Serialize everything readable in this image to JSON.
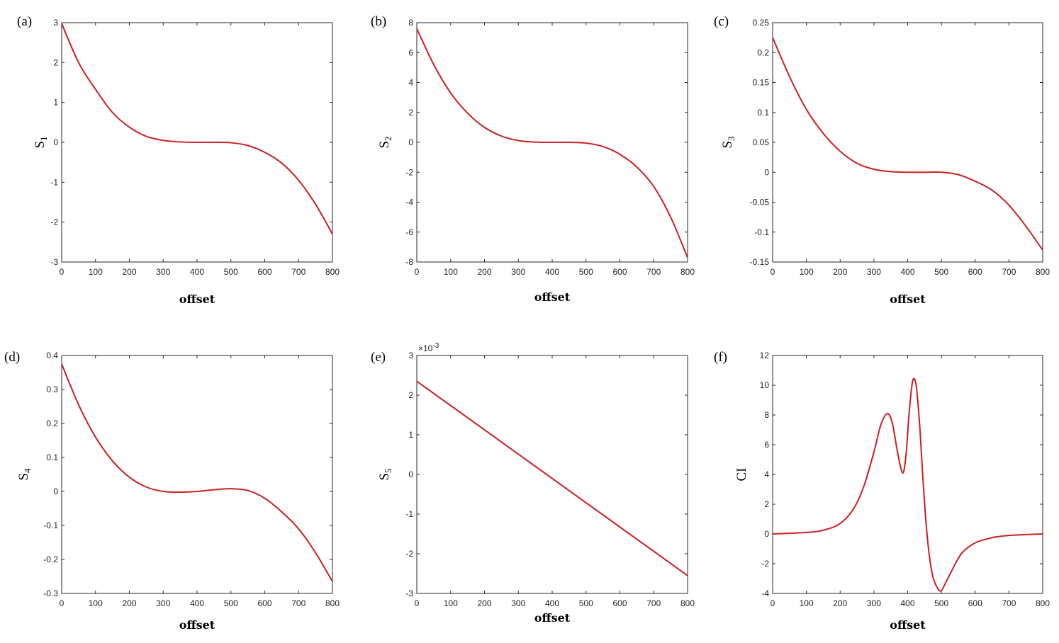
{
  "figure": {
    "line_color": "#cc1f1f",
    "axis_color": "#262626"
  },
  "chart_data": [
    {
      "panel": "(a)",
      "type": "line",
      "xlabel": "offset",
      "ylabel": "S",
      "ylabel_sub": "1",
      "xlim": [
        0,
        800
      ],
      "ylim": [
        -3,
        3
      ],
      "xticks": [
        0,
        100,
        200,
        300,
        400,
        500,
        600,
        700,
        800
      ],
      "yticks": [
        -3,
        -2,
        -1,
        0,
        1,
        2,
        3
      ],
      "ytick_labels": [
        "-3",
        "-2",
        "-1",
        "0",
        "1",
        "2",
        "3"
      ],
      "x": [
        0,
        50,
        100,
        150,
        200,
        250,
        300,
        350,
        400,
        450,
        500,
        550,
        600,
        650,
        700,
        750,
        800
      ],
      "y": [
        2.98,
        2.0,
        1.33,
        0.75,
        0.38,
        0.15,
        0.05,
        0.01,
        0.0,
        0.0,
        -0.01,
        -0.08,
        -0.25,
        -0.52,
        -0.95,
        -1.55,
        -2.3
      ]
    },
    {
      "panel": "(b)",
      "type": "line",
      "xlabel": "offset",
      "ylabel": "S",
      "ylabel_sub": "2",
      "xlim": [
        0,
        800
      ],
      "ylim": [
        -8,
        8
      ],
      "xticks": [
        0,
        100,
        200,
        300,
        400,
        500,
        600,
        700,
        800
      ],
      "yticks": [
        -8,
        -6,
        -4,
        -2,
        0,
        2,
        4,
        6,
        8
      ],
      "ytick_labels": [
        "-8",
        "-6",
        "-4",
        "-2",
        "0",
        "2",
        "4",
        "6",
        "8"
      ],
      "x": [
        0,
        50,
        100,
        150,
        200,
        250,
        300,
        350,
        400,
        450,
        500,
        550,
        600,
        650,
        700,
        750,
        800
      ],
      "y": [
        7.6,
        5.2,
        3.3,
        1.95,
        1.0,
        0.42,
        0.12,
        0.02,
        0.0,
        0.0,
        -0.05,
        -0.28,
        -0.8,
        -1.65,
        -2.95,
        -5.0,
        -7.7
      ]
    },
    {
      "panel": "(c)",
      "type": "line",
      "xlabel": "offset",
      "ylabel": "S",
      "ylabel_sub": "3",
      "xlim": [
        0,
        800
      ],
      "ylim": [
        -0.15,
        0.25
      ],
      "xticks": [
        0,
        100,
        200,
        300,
        400,
        500,
        600,
        700,
        800
      ],
      "yticks": [
        -0.15,
        -0.1,
        -0.05,
        0,
        0.05,
        0.1,
        0.15,
        0.2,
        0.25
      ],
      "ytick_labels": [
        "-0.15",
        "-0.1",
        "-0.05",
        "0",
        "0.05",
        "0.1",
        "0.15",
        "0.2",
        "0.25"
      ],
      "x": [
        0,
        50,
        100,
        150,
        200,
        250,
        300,
        350,
        400,
        450,
        500,
        550,
        600,
        650,
        700,
        750,
        800
      ],
      "y": [
        0.225,
        0.16,
        0.105,
        0.065,
        0.035,
        0.015,
        0.005,
        0.001,
        0.0,
        0.0,
        0.0,
        -0.004,
        -0.015,
        -0.03,
        -0.055,
        -0.09,
        -0.13
      ]
    },
    {
      "panel": "(d)",
      "type": "line",
      "xlabel": "offset",
      "ylabel": "S",
      "ylabel_sub": "4",
      "xlim": [
        0,
        800
      ],
      "ylim": [
        -0.3,
        0.4
      ],
      "xticks": [
        0,
        100,
        200,
        300,
        400,
        500,
        600,
        700,
        800
      ],
      "yticks": [
        -0.3,
        -0.2,
        -0.1,
        0,
        0.1,
        0.2,
        0.3,
        0.4
      ],
      "ytick_labels": [
        "-0.3",
        "-0.2",
        "-0.1",
        "0",
        "0.1",
        "0.2",
        "0.3",
        "0.4"
      ],
      "x": [
        0,
        50,
        100,
        150,
        200,
        250,
        300,
        350,
        400,
        450,
        500,
        550,
        600,
        650,
        700,
        750,
        800
      ],
      "y": [
        0.375,
        0.255,
        0.16,
        0.09,
        0.042,
        0.013,
        0.0,
        -0.002,
        0.0,
        0.005,
        0.008,
        0.003,
        -0.02,
        -0.06,
        -0.11,
        -0.18,
        -0.265
      ]
    },
    {
      "panel": "(e)",
      "type": "line",
      "xlabel": "offset",
      "ylabel": "S",
      "ylabel_sub": "5",
      "y_exponent": "-3",
      "xlim": [
        0,
        800
      ],
      "ylim": [
        -3,
        3
      ],
      "xticks": [
        0,
        100,
        200,
        300,
        400,
        500,
        600,
        700,
        800
      ],
      "yticks": [
        -3,
        -2,
        -1,
        0,
        1,
        2,
        3
      ],
      "ytick_labels": [
        "-3",
        "-2",
        "-1",
        "0",
        "1",
        "2",
        "3"
      ],
      "x": [
        0,
        800
      ],
      "y": [
        2.35,
        -2.55
      ]
    },
    {
      "panel": "(f)",
      "type": "line",
      "xlabel": "offset",
      "ylabel": "CI",
      "ylabel_sub": "",
      "xlim": [
        0,
        800
      ],
      "ylim": [
        -4,
        12
      ],
      "xticks": [
        0,
        100,
        200,
        300,
        400,
        500,
        600,
        700,
        800
      ],
      "yticks": [
        -4,
        -2,
        0,
        2,
        4,
        6,
        8,
        10,
        12
      ],
      "ytick_labels": [
        "-4",
        "-2",
        "0",
        "2",
        "4",
        "6",
        "8",
        "10",
        "12"
      ],
      "x": [
        0,
        100,
        150,
        200,
        240,
        270,
        300,
        320,
        340,
        355,
        370,
        385,
        395,
        405,
        415,
        425,
        435,
        445,
        455,
        465,
        475,
        490,
        500,
        510,
        530,
        560,
        600,
        650,
        700,
        800
      ],
      "y": [
        0.0,
        0.1,
        0.25,
        0.7,
        1.7,
        3.2,
        5.5,
        7.3,
        8.1,
        7.4,
        5.5,
        4.1,
        5.3,
        8.3,
        10.3,
        10.0,
        7.5,
        3.8,
        0.6,
        -1.6,
        -2.9,
        -3.7,
        -3.8,
        -3.4,
        -2.5,
        -1.3,
        -0.6,
        -0.25,
        -0.1,
        0.0
      ]
    }
  ]
}
